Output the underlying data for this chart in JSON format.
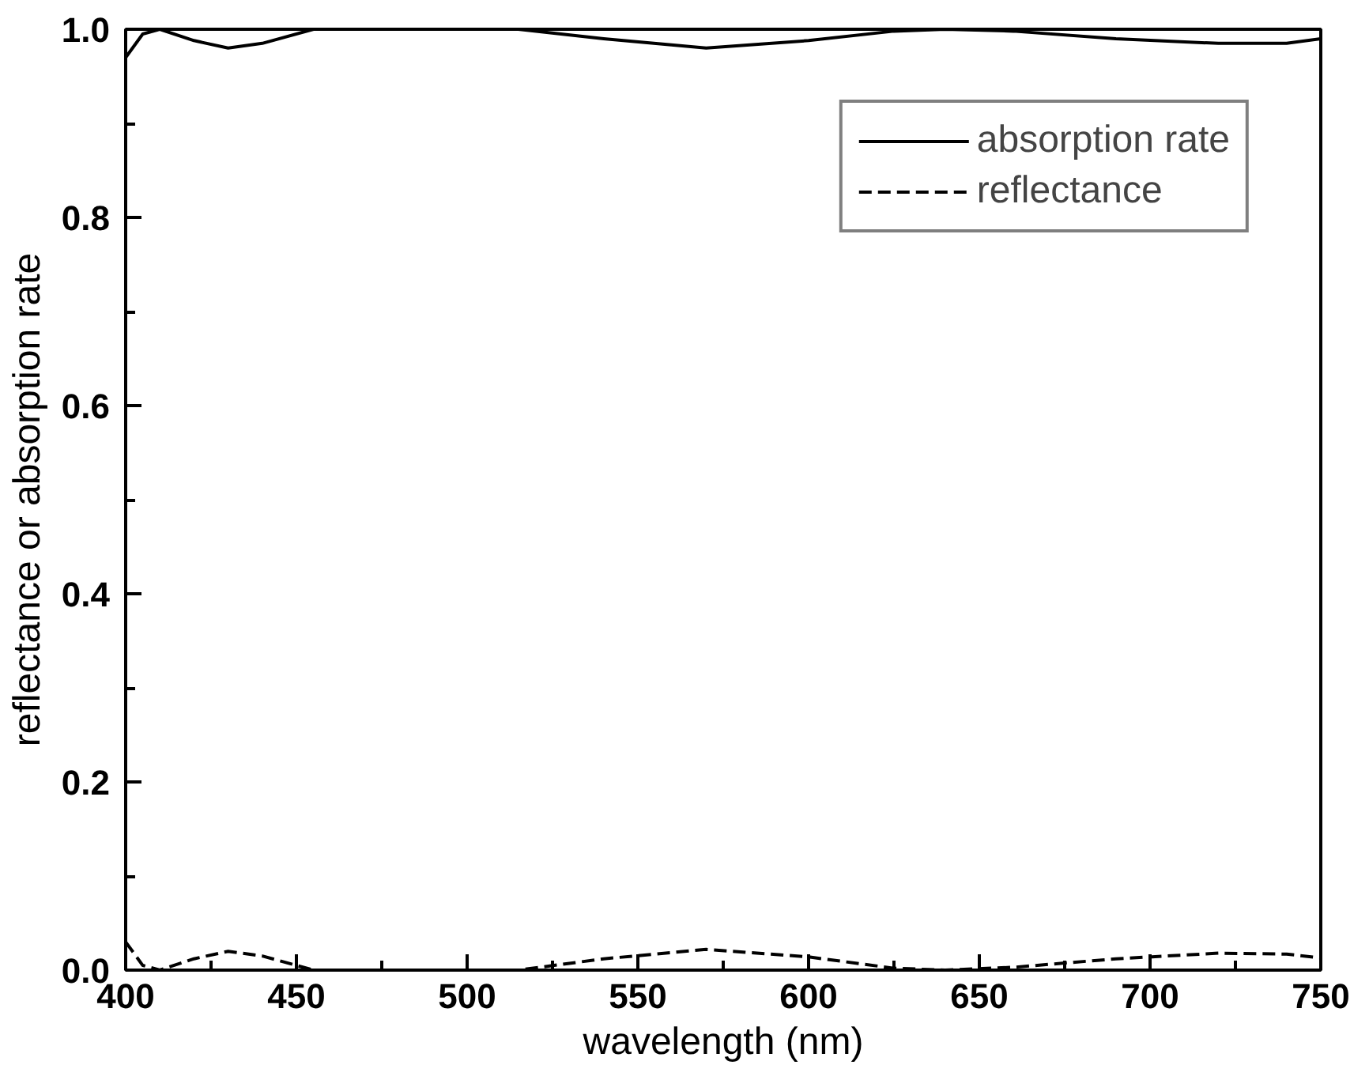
{
  "chart_data": {
    "type": "line",
    "xlabel": "wavelength (nm)",
    "ylabel": "reflectance or absorption rate",
    "xlim": [
      400,
      750
    ],
    "ylim": [
      0,
      1.0
    ],
    "xticks": [
      400,
      450,
      500,
      550,
      600,
      650,
      700,
      750
    ],
    "yticks": [
      {
        "value": 0,
        "label": "0.0"
      },
      {
        "value": 0.2,
        "label": "0.2"
      },
      {
        "value": 0.4,
        "label": "0.4"
      },
      {
        "value": 0.6,
        "label": "0.6"
      },
      {
        "value": 0.8,
        "label": "0.8"
      },
      {
        "value": 1.0,
        "label": "1.0"
      }
    ],
    "grid": false,
    "legend": "top right",
    "x": [
      400,
      405,
      410,
      420,
      430,
      440,
      455,
      480,
      515,
      540,
      570,
      600,
      625,
      640,
      660,
      690,
      720,
      740,
      750
    ],
    "series": [
      {
        "name": "absorption rate",
        "color": "#000000",
        "line_style": "solid",
        "values": [
          0.97,
          0.995,
          1.0,
          0.988,
          0.98,
          0.985,
          1.0,
          1.0,
          1.0,
          0.99,
          0.98,
          0.988,
          0.998,
          1.0,
          0.998,
          0.99,
          0.985,
          0.985,
          0.99
        ]
      },
      {
        "name": "reflectance",
        "color": "#000000",
        "line_style": "dashed",
        "values": [
          0.03,
          0.005,
          0.0,
          0.012,
          0.02,
          0.015,
          0.0,
          0.0,
          0.0,
          0.012,
          0.022,
          0.014,
          0.002,
          0.0,
          0.003,
          0.012,
          0.018,
          0.017,
          0.013
        ]
      }
    ]
  }
}
